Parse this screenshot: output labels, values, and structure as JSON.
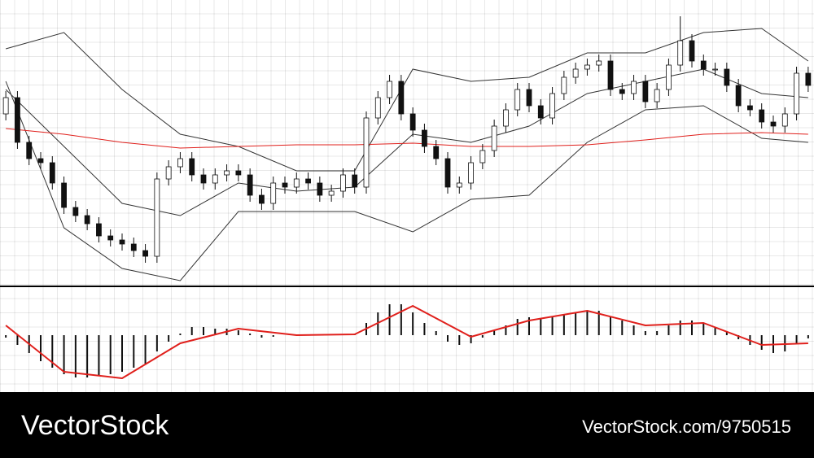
{
  "chart_data": [
    {
      "type": "candlestick",
      "xlim": [
        -0.5,
        69.5
      ],
      "ylim": [
        0,
        350
      ],
      "open": [
        210,
        230,
        175,
        155,
        150,
        125,
        95,
        85,
        75,
        60,
        55,
        50,
        42,
        35,
        130,
        145,
        155,
        135,
        125,
        135,
        140,
        135,
        110,
        100,
        125,
        120,
        130,
        125,
        110,
        115,
        135,
        120,
        205,
        230,
        250,
        210,
        190,
        170,
        155,
        120,
        125,
        150,
        165,
        195,
        215,
        240,
        220,
        205,
        235,
        255,
        265,
        270,
        275,
        240,
        235,
        250,
        225,
        240,
        270,
        300,
        275,
        265,
        265,
        245,
        220,
        215,
        200,
        195,
        210,
        260
      ],
      "high": [
        238,
        238,
        183,
        163,
        158,
        133,
        103,
        93,
        83,
        68,
        63,
        58,
        50,
        138,
        153,
        163,
        163,
        143,
        143,
        148,
        148,
        143,
        118,
        133,
        133,
        138,
        138,
        133,
        123,
        143,
        143,
        213,
        238,
        258,
        258,
        218,
        198,
        178,
        163,
        133,
        158,
        173,
        203,
        223,
        248,
        248,
        228,
        243,
        263,
        273,
        278,
        283,
        283,
        248,
        258,
        258,
        248,
        278,
        330,
        308,
        283,
        273,
        273,
        253,
        228,
        223,
        208,
        218,
        268,
        268
      ],
      "low": [
        202,
        167,
        147,
        142,
        117,
        87,
        77,
        67,
        52,
        47,
        42,
        34,
        27,
        27,
        122,
        137,
        127,
        117,
        117,
        127,
        127,
        102,
        92,
        92,
        112,
        112,
        117,
        102,
        102,
        107,
        112,
        112,
        197,
        222,
        202,
        182,
        162,
        147,
        112,
        112,
        117,
        142,
        157,
        187,
        207,
        212,
        197,
        197,
        227,
        247,
        257,
        262,
        232,
        227,
        227,
        217,
        217,
        232,
        262,
        267,
        257,
        257,
        237,
        212,
        207,
        192,
        187,
        187,
        202,
        237
      ],
      "close": [
        230,
        175,
        155,
        150,
        125,
        95,
        85,
        75,
        60,
        55,
        50,
        42,
        35,
        130,
        145,
        155,
        135,
        125,
        135,
        140,
        135,
        110,
        100,
        125,
        120,
        130,
        125,
        110,
        115,
        135,
        120,
        205,
        230,
        250,
        210,
        190,
        170,
        155,
        120,
        125,
        150,
        165,
        195,
        215,
        240,
        220,
        205,
        235,
        255,
        265,
        270,
        275,
        240,
        235,
        250,
        225,
        240,
        270,
        300,
        275,
        265,
        265,
        245,
        220,
        215,
        200,
        195,
        210,
        260,
        245
      ],
      "overlay_x": [
        0,
        5,
        10,
        15,
        20,
        25,
        30,
        35,
        40,
        45,
        50,
        55,
        60,
        65,
        69
      ],
      "overlays": [
        {
          "color": "#333333",
          "values": [
            290,
            310,
            240,
            185,
            170,
            140,
            140,
            265,
            250,
            255,
            285,
            285,
            310,
            315,
            275
          ]
        },
        {
          "color": "#333333",
          "values": [
            240,
            170,
            100,
            85,
            125,
            115,
            120,
            185,
            175,
            195,
            235,
            250,
            265,
            235,
            230
          ]
        },
        {
          "color": "#333333",
          "values": [
            250,
            70,
            20,
            5,
            90,
            90,
            90,
            65,
            105,
            110,
            175,
            215,
            220,
            180,
            175
          ]
        },
        {
          "color": "#e0201c",
          "values": [
            192,
            185,
            175,
            168,
            170,
            172,
            172,
            174,
            170,
            170,
            172,
            178,
            185,
            187,
            185
          ]
        }
      ]
    },
    {
      "type": "histogram-line",
      "xlim": [
        -0.5,
        69.5
      ],
      "ylim": [
        -70,
        57
      ],
      "values": [
        -3,
        -12,
        -22,
        -32,
        -40,
        -48,
        -52,
        -52,
        -50,
        -48,
        -45,
        -40,
        -35,
        -20,
        -8,
        2,
        10,
        10,
        8,
        8,
        6,
        2,
        -3,
        -2,
        0,
        0,
        1,
        0,
        0,
        1,
        2,
        15,
        28,
        38,
        38,
        28,
        15,
        5,
        -8,
        -12,
        -10,
        -3,
        6,
        12,
        20,
        22,
        20,
        22,
        25,
        28,
        30,
        30,
        22,
        18,
        12,
        5,
        5,
        12,
        18,
        18,
        14,
        10,
        4,
        -5,
        -12,
        -18,
        -22,
        -20,
        -10,
        -4
      ],
      "color": "#111111",
      "line_x": [
        0,
        5,
        10,
        15,
        20,
        25,
        30,
        35,
        40,
        45,
        50,
        55,
        60,
        65,
        69
      ],
      "line": {
        "color": "#e0201c",
        "values": [
          12,
          -45,
          -53,
          -10,
          8,
          0,
          1,
          36,
          -2,
          18,
          30,
          12,
          15,
          -12,
          -10
        ]
      }
    }
  ],
  "watermark": {
    "brand": "VectorStock",
    "id": "VectorStock.com/9750515"
  }
}
